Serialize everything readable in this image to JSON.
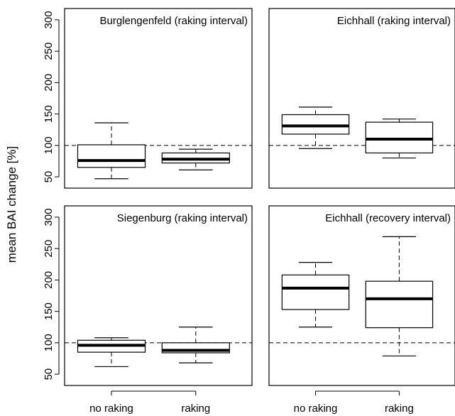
{
  "ylabel": "mean BAI change [%]",
  "categories": [
    "no raking",
    "raking"
  ],
  "yticks": [
    50,
    100,
    150,
    200,
    250,
    300
  ],
  "ylim": [
    32,
    318
  ],
  "reference_line": 100,
  "chart_data": [
    {
      "type": "boxplot",
      "title": "Burglengenfeld (raking interval)",
      "categories": [
        "no raking",
        "raking"
      ],
      "boxes": [
        {
          "category": "no raking",
          "whisker_low": 47,
          "q1": 65,
          "median": 76,
          "q3": 101,
          "whisker_high": 136
        },
        {
          "category": "raking",
          "whisker_low": 61,
          "q1": 72,
          "median": 78,
          "q3": 88,
          "whisker_high": 94
        }
      ],
      "ylabel": "mean BAI change [%]",
      "ylim": [
        32,
        318
      ]
    },
    {
      "type": "boxplot",
      "title": "Eichhall (raking interval)",
      "categories": [
        "no raking",
        "raking"
      ],
      "boxes": [
        {
          "category": "no raking",
          "whisker_low": 95,
          "q1": 118,
          "median": 131,
          "q3": 149,
          "whisker_high": 161
        },
        {
          "category": "raking",
          "whisker_low": 80,
          "q1": 88,
          "median": 110,
          "q3": 137,
          "whisker_high": 142
        }
      ],
      "ylabel": "mean BAI change [%]",
      "ylim": [
        32,
        318
      ]
    },
    {
      "type": "boxplot",
      "title": "Siegenburg (raking interval)",
      "categories": [
        "no raking",
        "raking"
      ],
      "boxes": [
        {
          "category": "no raking",
          "whisker_low": 62,
          "q1": 85,
          "median": 96,
          "q3": 104,
          "whisker_high": 108
        },
        {
          "category": "raking",
          "whisker_low": 68,
          "q1": 84,
          "median": 88,
          "q3": 100,
          "whisker_high": 125
        }
      ],
      "ylabel": "mean BAI change [%]",
      "ylim": [
        32,
        318
      ]
    },
    {
      "type": "boxplot",
      "title": "Eichhall (recovery interval)",
      "categories": [
        "no raking",
        "raking"
      ],
      "boxes": [
        {
          "category": "no raking",
          "whisker_low": 125,
          "q1": 153,
          "median": 187,
          "q3": 208,
          "whisker_high": 228
        },
        {
          "category": "raking",
          "whisker_low": 79,
          "q1": 124,
          "median": 170,
          "q3": 198,
          "whisker_high": 269
        }
      ],
      "ylabel": "mean BAI change [%]",
      "ylim": [
        32,
        318
      ]
    }
  ]
}
